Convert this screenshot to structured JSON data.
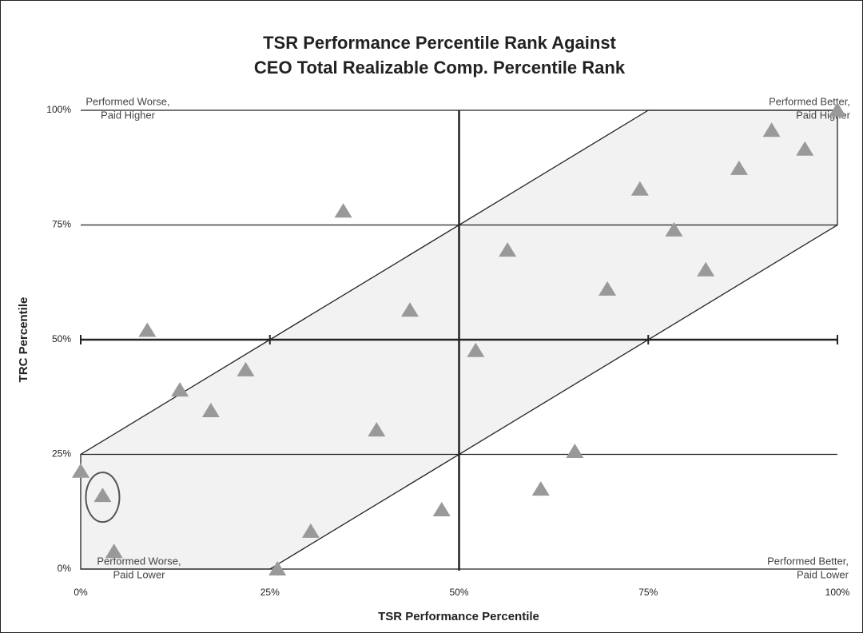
{
  "chart_data": {
    "type": "scatter",
    "title": [
      "TSR Performance Percentile Rank Against",
      "CEO Total Realizable Comp. Percentile Rank"
    ],
    "x_label": "TSR Performance Percentile",
    "y_label": "TRC Percentile",
    "xlim": [
      0,
      100
    ],
    "ylim": [
      0,
      100
    ],
    "xticks": [
      {
        "value": 0,
        "label": "0%"
      },
      {
        "value": 25,
        "label": "25%"
      },
      {
        "value": 50,
        "label": "50%"
      },
      {
        "value": 75,
        "label": "75%"
      },
      {
        "value": 100,
        "label": "100%"
      }
    ],
    "yticks": [
      {
        "value": 0,
        "label": "0%"
      },
      {
        "value": 25,
        "label": "25%"
      },
      {
        "value": 50,
        "label": "50%"
      },
      {
        "value": 75,
        "label": "75%"
      },
      {
        "value": 100,
        "label": "100%"
      }
    ],
    "grid": true,
    "annotations": {
      "top_left": [
        "Performed Worse,",
        "Paid Higher"
      ],
      "top_right": [
        "Performed Better,",
        "Paid Higher"
      ],
      "bottom_left": [
        "Performed Worse,",
        "Paid Lower"
      ],
      "bottom_right": [
        "Performed Better,",
        "Paid Lower"
      ]
    },
    "highlighted_point": 1,
    "color": "#999999",
    "x": [
      0,
      2.9,
      4.4,
      8.8,
      13.1,
      17.2,
      21.8,
      26,
      30.4,
      34.7,
      39.1,
      43.5,
      47.7,
      52.2,
      56.4,
      60.8,
      65.3,
      69.6,
      73.9,
      78.4,
      82.6,
      87,
      91.3,
      95.7,
      100
    ],
    "values": [
      21.3,
      16,
      3.8,
      52,
      39,
      34.5,
      43.4,
      0,
      8.2,
      78,
      30.3,
      56.4,
      12.9,
      47.6,
      69.5,
      17.4,
      25.6,
      61,
      82.8,
      73.9,
      65.2,
      87.3,
      95.6,
      91.5,
      100
    ]
  }
}
